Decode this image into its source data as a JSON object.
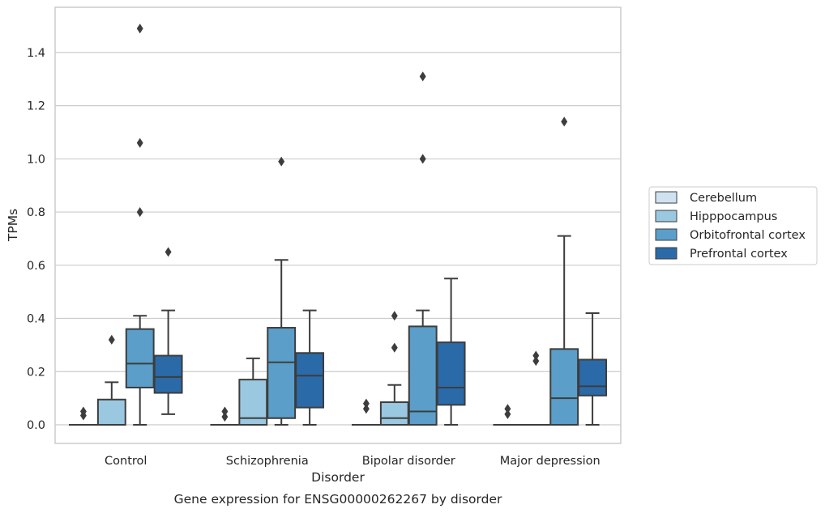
{
  "chart_data": {
    "type": "box",
    "title": "",
    "caption": "Gene expression for ENSG00000262267 by disorder",
    "xlabel": "Disorder",
    "ylabel": "TPMs",
    "ylim": [
      -0.07,
      1.57
    ],
    "yticks": [
      0.0,
      0.2,
      0.4,
      0.6,
      0.8,
      1.0,
      1.2,
      1.4
    ],
    "ytick_labels": [
      "0.0",
      "0.2",
      "0.4",
      "0.6",
      "0.8",
      "1.0",
      "1.2",
      "1.4"
    ],
    "grid": "horizontal",
    "legend_position": "right",
    "categories": [
      "Control",
      "Schizophrenia",
      "Bipolar disorder",
      "Major depression"
    ],
    "series": [
      {
        "name": "Cerebellum",
        "color": "#d0e2f2",
        "boxes": [
          {
            "min": 0.0,
            "q1": 0.0,
            "median": 0.0,
            "q3": 0.0,
            "max": 0.0,
            "outliers": [
              0.035,
              0.05
            ]
          },
          {
            "min": 0.0,
            "q1": 0.0,
            "median": 0.0,
            "q3": 0.0,
            "max": 0.0,
            "outliers": [
              0.03,
              0.05
            ]
          },
          {
            "min": 0.0,
            "q1": 0.0,
            "median": 0.0,
            "q3": 0.0,
            "max": 0.0,
            "outliers": [
              0.06,
              0.08
            ]
          },
          {
            "min": 0.0,
            "q1": 0.0,
            "median": 0.0,
            "q3": 0.0,
            "max": 0.0,
            "outliers": [
              0.04,
              0.06
            ]
          }
        ]
      },
      {
        "name": "Hipppocampus",
        "color": "#9ac8e0",
        "boxes": [
          {
            "min": 0.0,
            "q1": 0.0,
            "median": 0.0,
            "q3": 0.095,
            "max": 0.16,
            "outliers": [
              0.32
            ]
          },
          {
            "min": 0.0,
            "q1": 0.0,
            "median": 0.025,
            "q3": 0.17,
            "max": 0.25,
            "outliers": []
          },
          {
            "min": 0.0,
            "q1": 0.0,
            "median": 0.025,
            "q3": 0.085,
            "max": 0.15,
            "outliers": [
              0.29,
              0.41
            ]
          },
          {
            "min": 0.0,
            "q1": 0.0,
            "median": 0.0,
            "q3": 0.0,
            "max": 0.0,
            "outliers": [
              0.24,
              0.26
            ]
          }
        ]
      },
      {
        "name": "Orbitofrontal cortex",
        "color": "#5a9ec9",
        "boxes": [
          {
            "min": 0.0,
            "q1": 0.14,
            "median": 0.23,
            "q3": 0.36,
            "max": 0.41,
            "outliers": [
              0.8,
              1.06,
              1.49
            ]
          },
          {
            "min": 0.0,
            "q1": 0.025,
            "median": 0.235,
            "q3": 0.365,
            "max": 0.62,
            "outliers": [
              0.99
            ]
          },
          {
            "min": 0.0,
            "q1": 0.0,
            "median": 0.05,
            "q3": 0.37,
            "max": 0.43,
            "outliers": [
              1.0,
              1.31
            ]
          },
          {
            "min": 0.0,
            "q1": 0.0,
            "median": 0.1,
            "q3": 0.285,
            "max": 0.71,
            "outliers": [
              1.14
            ]
          }
        ]
      },
      {
        "name": "Prefrontal cortex",
        "color": "#2b6aa8",
        "boxes": [
          {
            "min": 0.04,
            "q1": 0.12,
            "median": 0.18,
            "q3": 0.26,
            "max": 0.43,
            "outliers": [
              0.65
            ]
          },
          {
            "min": 0.0,
            "q1": 0.065,
            "median": 0.185,
            "q3": 0.27,
            "max": 0.43,
            "outliers": []
          },
          {
            "min": 0.0,
            "q1": 0.075,
            "median": 0.14,
            "q3": 0.31,
            "max": 0.55,
            "outliers": []
          },
          {
            "min": 0.0,
            "q1": 0.11,
            "median": 0.145,
            "q3": 0.245,
            "max": 0.42,
            "outliers": []
          }
        ]
      }
    ]
  }
}
